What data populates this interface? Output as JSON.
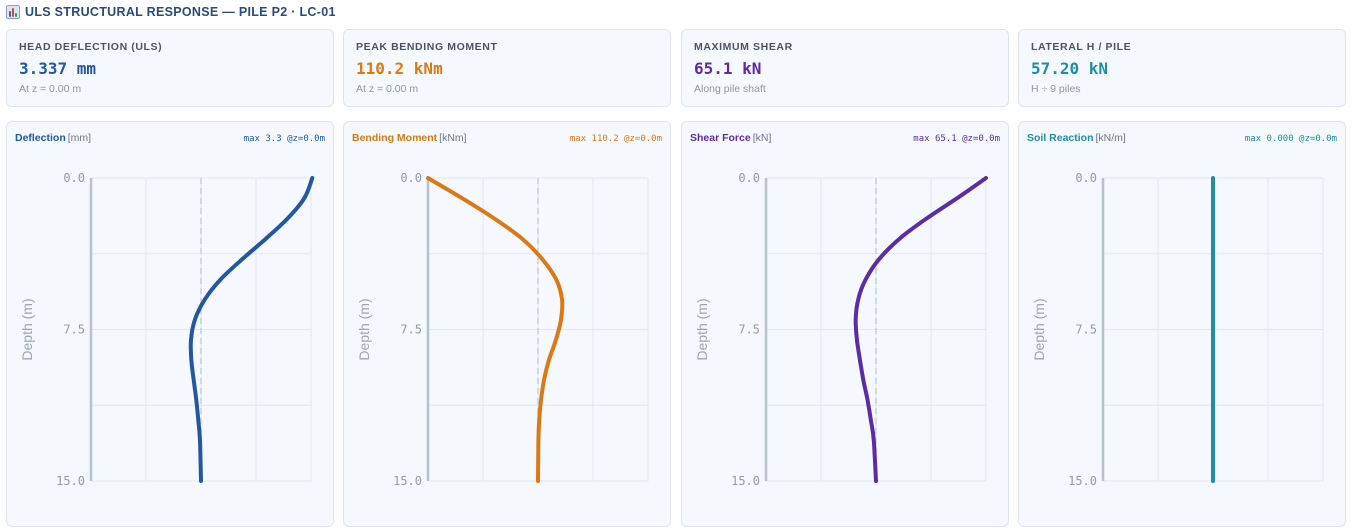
{
  "header": {
    "title": "ULS STRUCTURAL RESPONSE — PILE P2 · LC-01",
    "icon": "bar-chart-icon"
  },
  "kpis": [
    {
      "label": "HEAD DEFLECTION (ULS)",
      "value": "3.337 mm",
      "sub": "At z = 0.00 m",
      "color": "#2457a0"
    },
    {
      "label": "PEAK BENDING MOMENT",
      "value": "110.2 kNm",
      "sub": "At z = 0.00 m",
      "color": "#d97a16"
    },
    {
      "label": "MAXIMUM SHEAR",
      "value": "65.1 kN",
      "sub": "Along pile shaft",
      "color": "#5b2ca4"
    },
    {
      "label": "LATERAL H / PILE",
      "value": "57.20 kN",
      "sub": "H ÷ 9 piles",
      "color": "#1f8ea3"
    }
  ],
  "chart_data": [
    {
      "type": "line",
      "title": "Deflection",
      "unit": "[mm]",
      "max_label": "max 3.3 @z=0.0m",
      "ylabel": "Depth (m)",
      "yticks": [
        "0.0",
        "7.5",
        "15.0"
      ],
      "ylim": [
        0,
        15
      ],
      "xlim": [
        -3.3,
        3.3
      ],
      "color": "#2457a0",
      "series": [
        {
          "x": [
            3.34,
            3.1,
            2.6,
            1.95,
            1.25,
            0.6,
            0.12,
            -0.18,
            -0.3,
            -0.29,
            -0.22,
            -0.14,
            -0.08,
            -0.03,
            0.0
          ],
          "y": [
            0,
            1,
            2,
            3,
            4,
            5,
            6,
            7,
            8,
            9,
            10,
            11,
            12,
            13,
            15
          ]
        }
      ]
    },
    {
      "type": "line",
      "title": "Bending Moment",
      "unit": "[kNm]",
      "max_label": "max 110.2 @z=0.0m",
      "ylabel": "Depth (m)",
      "yticks": [
        "0.0",
        "7.5",
        "15.0"
      ],
      "ylim": [
        0,
        15
      ],
      "xlim": [
        -110.2,
        110.2
      ],
      "color": "#d97a16",
      "series": [
        {
          "x": [
            -110.2,
            -76,
            -44,
            -16,
            4,
            18,
            24,
            23,
            18,
            11,
            6,
            3,
            1.2,
            0.4,
            0
          ],
          "y": [
            0,
            1,
            2,
            3,
            4,
            5,
            6,
            7,
            8,
            9,
            10,
            11,
            12,
            13,
            15
          ]
        }
      ]
    },
    {
      "type": "line",
      "title": "Shear Force",
      "unit": "[kN]",
      "max_label": "max 65.1 @z=0.0m",
      "ylabel": "Depth (m)",
      "yticks": [
        "0.0",
        "7.5",
        "15.0"
      ],
      "ylim": [
        0,
        15
      ],
      "xlim": [
        -65.1,
        65.1
      ],
      "color": "#5b2ca4",
      "series": [
        {
          "x": [
            65.1,
            48,
            30,
            14,
            2,
            -6,
            -10.5,
            -12,
            -11.3,
            -9.5,
            -7.5,
            -5,
            -3,
            -1.3,
            0
          ],
          "y": [
            0,
            1,
            2,
            3,
            4,
            5,
            6,
            7,
            8,
            9,
            10,
            11,
            12,
            13,
            15
          ]
        }
      ]
    },
    {
      "type": "line",
      "title": "Soil Reaction",
      "unit": "[kN/m]",
      "max_label": "max 0.000 @z=0.0m",
      "ylabel": "Depth (m)",
      "yticks": [
        "0.0",
        "7.5",
        "15.0"
      ],
      "ylim": [
        0,
        15
      ],
      "xlim": [
        -1,
        1
      ],
      "color": "#1f8ea3",
      "series": [
        {
          "x": [
            0,
            0
          ],
          "y": [
            0,
            15
          ]
        }
      ]
    }
  ]
}
